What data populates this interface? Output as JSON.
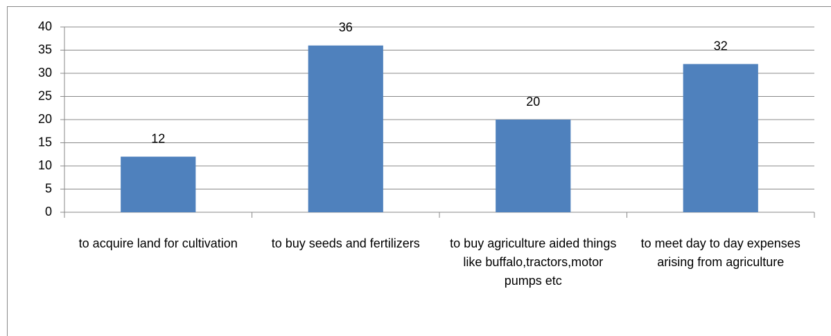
{
  "chart_data": {
    "type": "bar",
    "categories": [
      "to acquire land for cultivation",
      "to buy seeds and fertilizers",
      "to buy agriculture aided things like buffalo,tractors,motor pumps etc",
      "to meet day to day expenses arising from agriculture"
    ],
    "values": [
      12,
      36,
      20,
      32
    ],
    "color": "#4f81bd",
    "ylim": [
      0,
      40
    ],
    "yticks": [
      0,
      5,
      10,
      15,
      20,
      25,
      30,
      35,
      40
    ],
    "grid": true
  }
}
